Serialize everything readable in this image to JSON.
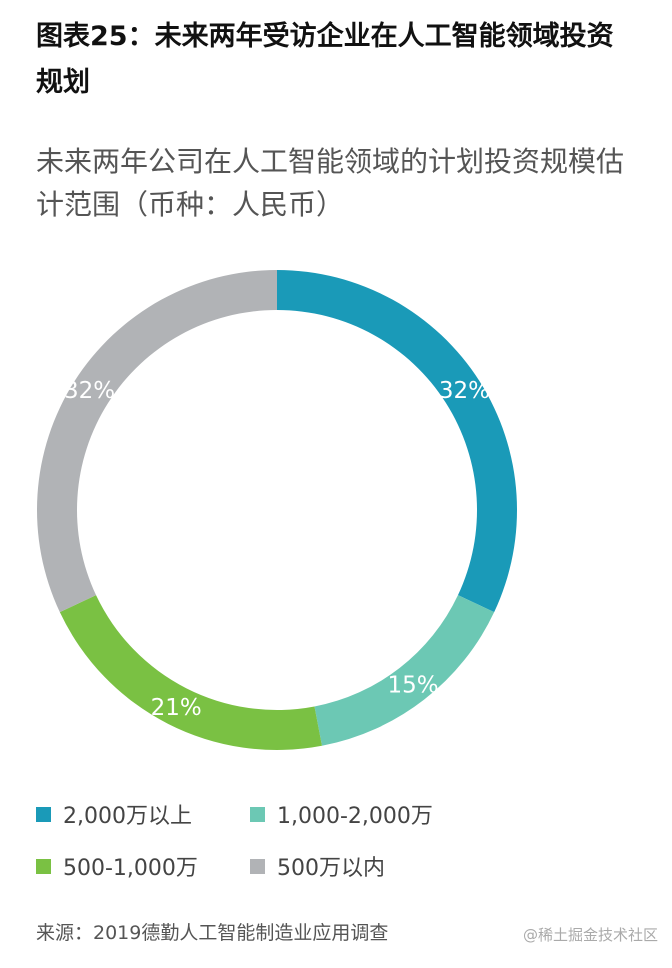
{
  "header": {
    "title": "图表25：未来两年受访企业在人工智能领域投资规划"
  },
  "chart_data": {
    "type": "pie",
    "title": "未来两年公司在人工智能领域的计划投资规模估计范围（币种：人民币）",
    "donut": true,
    "categories": [
      "2,000万以上",
      "1,000-2,000万",
      "500-1,000万",
      "500万以内"
    ],
    "values": [
      32,
      15,
      21,
      32
    ],
    "labels": [
      "32%",
      "15%",
      "21%",
      "32%"
    ],
    "colors": [
      "#1a9ab8",
      "#6cc8b4",
      "#7ac143",
      "#b1b3b6"
    ],
    "legend_position": "bottom"
  },
  "footer": {
    "source": "来源：2019德勤人工智能制造业应用调查",
    "watermark": "@稀土掘金技术社区"
  }
}
